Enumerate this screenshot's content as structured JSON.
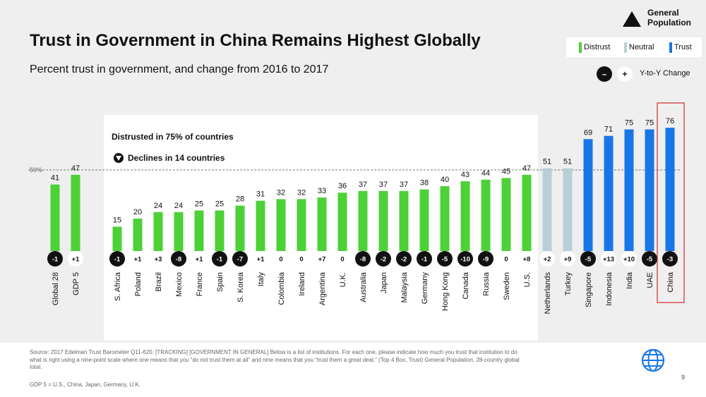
{
  "title": "Trust in Government in China Remains Highest Globally",
  "subtitle": "Percent trust in government, and change from 2016 to 2017",
  "legend": {
    "general_population": "General Population",
    "distrust": "Distrust",
    "neutral": "Neutral",
    "trust": "Trust",
    "yty_change": "Y-to-Y Change",
    "minus_symbol": "–",
    "plus_symbol": "+"
  },
  "callout": {
    "distrusted": "Distrusted in 75% of countries",
    "declines": "Declines in 14 countries"
  },
  "reference_line_label": "50%",
  "colors": {
    "distrust": "#4cd137",
    "neutral": "#b9cfd8",
    "trust": "#1877e8",
    "highlight_border": "#d62828"
  },
  "footer": {
    "source": "Source: 2017 Edelman Trust Barometer  Q11-620. [TRACKING] [GOVERNMENT IN GENERAL] Below is a list of institutions. For each one, please indicate how much you trust that institution to do what is right using a nine-point scale where one means that you “do not trust them at all” and nine means that you “trust them a great deal.” (Top 4 Box, Trust) General Population, 28-country global total.",
    "gdp_note": "GDP 5 = U.S., China, Japan, Germany, U.K.",
    "page_number": "9"
  },
  "chart_data": {
    "type": "bar",
    "categories": [
      "Global 28",
      "GDP 5",
      "S. Africa",
      "Poland",
      "Brazil",
      "Mexico",
      "France",
      "Spain",
      "S. Korea",
      "Italy",
      "Colombia",
      "Ireland",
      "Argentina",
      "U.K.",
      "Australia",
      "Japan",
      "Malaysia",
      "Germany",
      "Hong Kong",
      "Canada",
      "Russia",
      "Sweden",
      "U.S.",
      "Netherlands",
      "Turkey",
      "Singapore",
      "Indonesia",
      "India",
      "UAE",
      "China"
    ],
    "values": [
      41,
      47,
      15,
      20,
      24,
      24,
      25,
      25,
      28,
      31,
      32,
      32,
      33,
      36,
      37,
      37,
      37,
      38,
      40,
      43,
      44,
      45,
      47,
      51,
      51,
      69,
      71,
      75,
      75,
      76
    ],
    "levels": [
      "distrust",
      "distrust",
      "distrust",
      "distrust",
      "distrust",
      "distrust",
      "distrust",
      "distrust",
      "distrust",
      "distrust",
      "distrust",
      "distrust",
      "distrust",
      "distrust",
      "distrust",
      "distrust",
      "distrust",
      "distrust",
      "distrust",
      "distrust",
      "distrust",
      "distrust",
      "distrust",
      "neutral",
      "neutral",
      "trust",
      "trust",
      "trust",
      "trust",
      "trust"
    ],
    "changes": [
      "-1",
      "+1",
      "-1",
      "+1",
      "+3",
      "-8",
      "+1",
      "-1",
      "-7",
      "+1",
      "0",
      "0",
      "+7",
      "0",
      "-8",
      "-2",
      "-2",
      "-1",
      "-5",
      "-10",
      "-9",
      "0",
      "+8",
      "+2",
      "+9",
      "-5",
      "+13",
      "+10",
      "-5",
      "-3"
    ],
    "reference_line": 50,
    "highlight": "China",
    "ylim": [
      0,
      80
    ]
  }
}
